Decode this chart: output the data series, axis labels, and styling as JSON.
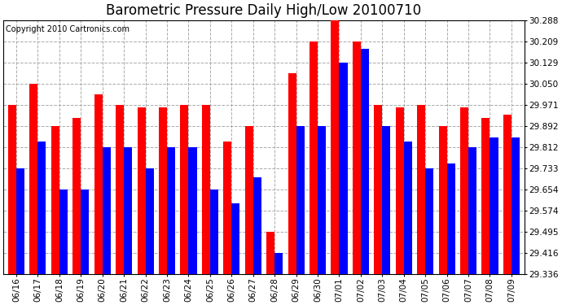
{
  "title": "Barometric Pressure Daily High/Low 20100710",
  "copyright": "Copyright 2010 Cartronics.com",
  "dates": [
    "06/16",
    "06/17",
    "06/18",
    "06/19",
    "06/20",
    "06/21",
    "06/22",
    "06/23",
    "06/24",
    "06/25",
    "06/26",
    "06/27",
    "06/28",
    "06/29",
    "06/30",
    "07/01",
    "07/02",
    "07/03",
    "07/04",
    "07/05",
    "07/06",
    "07/07",
    "07/08",
    "07/09"
  ],
  "highs": [
    29.971,
    30.05,
    29.892,
    29.921,
    30.01,
    29.971,
    29.96,
    29.96,
    29.971,
    29.971,
    29.833,
    29.892,
    29.495,
    30.09,
    30.209,
    30.288,
    30.209,
    29.971,
    29.96,
    29.971,
    29.892,
    29.96,
    29.921,
    29.933
  ],
  "lows": [
    29.733,
    29.833,
    29.654,
    29.654,
    29.812,
    29.812,
    29.733,
    29.812,
    29.812,
    29.654,
    29.6,
    29.7,
    29.416,
    29.892,
    29.892,
    30.129,
    30.18,
    29.892,
    29.833,
    29.733,
    29.75,
    29.812,
    29.85,
    29.85
  ],
  "high_color": "#FF0000",
  "low_color": "#0000FF",
  "bg_color": "#FFFFFF",
  "plot_bg_color": "#FFFFFF",
  "grid_color": "#AAAAAA",
  "ymin": 29.336,
  "ymax": 30.288,
  "yticks": [
    29.336,
    29.416,
    29.495,
    29.574,
    29.654,
    29.733,
    29.812,
    29.892,
    29.971,
    30.05,
    30.129,
    30.209,
    30.288
  ],
  "title_fontsize": 12,
  "copyright_fontsize": 7,
  "tick_fontsize": 7.5,
  "bar_width": 0.38
}
